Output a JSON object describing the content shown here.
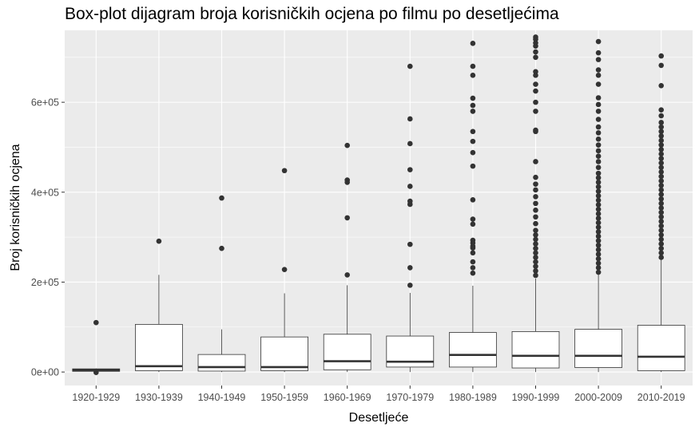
{
  "chart_data": {
    "type": "boxplot",
    "title": "Box-plot dijagram broja korisničkih ocjena po filmu po desetljećima",
    "xlabel": "Desetljeće",
    "ylabel": "Broj korisničkih ocjena",
    "ylim": [
      -30000,
      760000
    ],
    "y_ticks": [
      0,
      200000,
      400000,
      600000
    ],
    "y_tick_labels": [
      "0e+00",
      "2e+05",
      "4e+05",
      "6e+05"
    ],
    "grid": true,
    "colors": {
      "panel": "#EBEBEB",
      "grid": "#FFFFFF",
      "box_fill": "#FFFFFF",
      "stroke": "#333333",
      "outlier": "#333333",
      "tick_text": "#4D4D4D"
    },
    "categories": [
      "1920-1929",
      "1930-1939",
      "1940-1949",
      "1950-1959",
      "1960-1969",
      "1970-1979",
      "1980-1989",
      "1990-1999",
      "2000-2009",
      "2010-2019"
    ],
    "boxes": [
      {
        "q1": 1500,
        "median": 4000,
        "q3": 7000,
        "whisker_low": 0,
        "whisker_high": 8000,
        "outliers": [
          110000,
          -1000
        ]
      },
      {
        "q1": 3000,
        "median": 13000,
        "q3": 106000,
        "whisker_low": 0,
        "whisker_high": 216000,
        "outliers": [
          291000
        ]
      },
      {
        "q1": 2000,
        "median": 11000,
        "q3": 39000,
        "whisker_low": 0,
        "whisker_high": 95000,
        "outliers": [
          275000,
          387000
        ]
      },
      {
        "q1": 3000,
        "median": 11000,
        "q3": 78000,
        "whisker_low": 0,
        "whisker_high": 175000,
        "outliers": [
          228000,
          448000
        ]
      },
      {
        "q1": 5000,
        "median": 24000,
        "q3": 84000,
        "whisker_low": 0,
        "whisker_high": 193000,
        "outliers": [
          216000,
          343000,
          422000,
          427000,
          504000
        ]
      },
      {
        "q1": 11000,
        "median": 23000,
        "q3": 80000,
        "whisker_low": 0,
        "whisker_high": 176000,
        "outliers": [
          193000,
          232000,
          284000,
          373000,
          380000,
          413000,
          450000,
          508000,
          563000,
          680000
        ]
      },
      {
        "q1": 11000,
        "median": 38000,
        "q3": 88000,
        "whisker_low": 0,
        "whisker_high": 192000,
        "outliers": [
          220000,
          232000,
          245000,
          265000,
          276000,
          280000,
          287000,
          293000,
          329000,
          340000,
          383000,
          458000,
          488000,
          513000,
          535000,
          580000,
          593000,
          609000,
          660000,
          680000,
          731000
        ]
      },
      {
        "q1": 9000,
        "median": 36000,
        "q3": 90000,
        "whisker_low": 0,
        "whisker_high": 208000,
        "outliers": [
          215000,
          225000,
          235000,
          245000,
          255000,
          265000,
          275000,
          285000,
          295000,
          305000,
          315000,
          330000,
          345000,
          360000,
          375000,
          390000,
          405000,
          418000,
          433000,
          468000,
          535000,
          538000,
          580000,
          600000,
          625000,
          640000,
          660000,
          668000,
          700000,
          712000,
          725000,
          732000,
          740000,
          745000
        ]
      },
      {
        "q1": 10000,
        "median": 36000,
        "q3": 95000,
        "whisker_low": 0,
        "whisker_high": 218000,
        "outliers": [
          222000,
          232000,
          242000,
          252000,
          262000,
          272000,
          282000,
          292000,
          302000,
          312000,
          322000,
          332000,
          342000,
          352000,
          362000,
          372000,
          382000,
          392000,
          402000,
          412000,
          422000,
          432000,
          442000,
          455000,
          468000,
          480000,
          492000,
          505000,
          518000,
          532000,
          545000,
          562000,
          580000,
          595000,
          610000,
          640000,
          660000,
          672000,
          695000,
          710000,
          735000
        ]
      },
      {
        "q1": 3000,
        "median": 34000,
        "q3": 104000,
        "whisker_low": 0,
        "whisker_high": 250000,
        "outliers": [
          255000,
          265000,
          275000,
          285000,
          295000,
          305000,
          315000,
          325000,
          335000,
          345000,
          355000,
          365000,
          375000,
          385000,
          395000,
          405000,
          415000,
          425000,
          435000,
          445000,
          455000,
          465000,
          475000,
          485000,
          495000,
          505000,
          515000,
          525000,
          535000,
          545000,
          555000,
          570000,
          583000,
          637000,
          682000,
          703000
        ]
      }
    ]
  }
}
